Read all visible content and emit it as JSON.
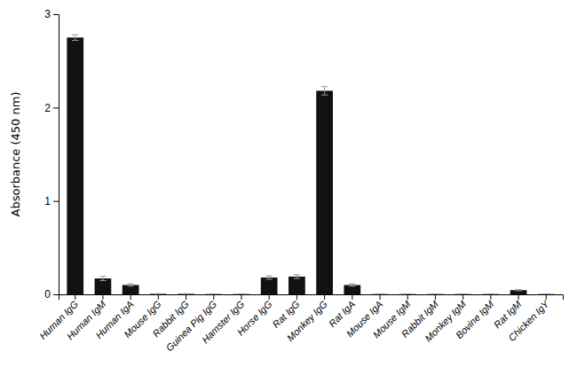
{
  "chart_data": {
    "type": "bar",
    "categories": [
      "Human IgG",
      "Human IgM",
      "Human IgA",
      "Mouse IgG",
      "Rabbit IgG",
      "Guinea Pig IgG",
      "Hamster IgG",
      "Horse IgG",
      "Rat IgG",
      "Monkey IgG",
      "Rat IgA",
      "Mouse IgA",
      "Mouse IgM",
      "Rabbit IgM",
      "Monkey IgM",
      "Bovine IgM",
      "Rat IgM",
      "Chicken IgY"
    ],
    "values": [
      2.75,
      0.17,
      0.1,
      0.005,
      0.005,
      0.003,
      0.003,
      0.18,
      0.19,
      2.18,
      0.1,
      0.003,
      0.003,
      0.003,
      0.003,
      0.003,
      0.045,
      0.003
    ],
    "errors": [
      0.03,
      0.022,
      0.012,
      0.002,
      0.002,
      0.001,
      0.001,
      0.018,
      0.02,
      0.045,
      0.012,
      0.001,
      0.001,
      0.001,
      0.001,
      0.001,
      0.006,
      0.001
    ],
    "color": "#111111",
    "ylabel": "Absorbance (450 nm)",
    "ylim": [
      0,
      3.0
    ],
    "yticks": [
      0,
      1,
      2,
      3
    ],
    "grid": false
  }
}
